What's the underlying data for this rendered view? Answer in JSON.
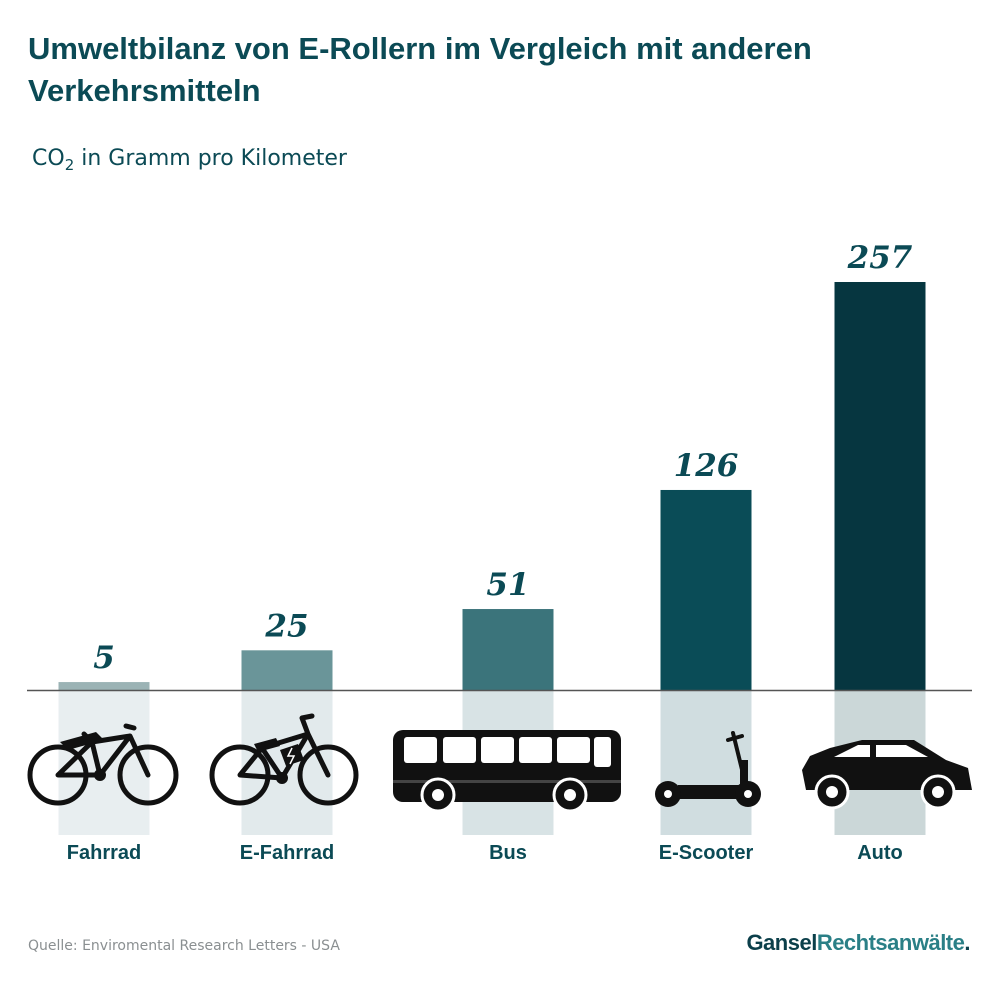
{
  "title": "Umweltbilanz von E-Rollern im Vergleich mit anderen Verkehrsmitteln",
  "subtitle_main": "CO",
  "subtitle_sub": "2",
  "subtitle_rest": " in Gramm pro Kilometer",
  "source": "Quelle: Enviromental Research Letters - USA",
  "brand": {
    "part1": "Gansel",
    "part2": "Rechtsanwälte",
    "dot": "."
  },
  "colors": {
    "text": "#0b4a55",
    "bars": [
      "#9bb3b5",
      "#6a9599",
      "#3b747b",
      "#0a4c57",
      "#063640"
    ],
    "shades": [
      "#e8eef0",
      "#e2eaec",
      "#d8e3e5",
      "#d0dde0",
      "#cbd7d8"
    ]
  },
  "chart_data": {
    "type": "bar",
    "title": "Umweltbilanz von E-Rollern im Vergleich mit anderen Verkehrsmitteln",
    "ylabel": "CO2 in Gramm pro Kilometer",
    "xlabel": "",
    "categories": [
      "Fahrrad",
      "E-Fahrrad",
      "Bus",
      "E-Scooter",
      "Auto"
    ],
    "values": [
      5,
      25,
      51,
      126,
      257
    ],
    "icons": [
      "bicycle-icon",
      "e-bike-icon",
      "bus-icon",
      "e-scooter-icon",
      "car-icon"
    ],
    "ylim": [
      0,
      257
    ],
    "grid": false,
    "legend": "none"
  }
}
